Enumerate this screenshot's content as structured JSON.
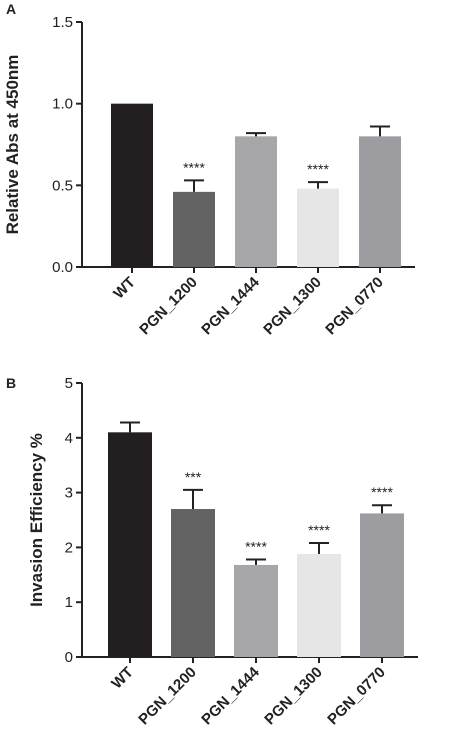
{
  "chart_data": [
    {
      "panel": "A",
      "type": "bar",
      "ylabel": "Relative Abs at 450nm",
      "ylim": [
        0,
        1.5
      ],
      "yticks": [
        "0.0",
        "0.5",
        "1.0",
        "1.5"
      ],
      "categories": [
        "WT",
        "PGN_1200",
        "PGN_1444",
        "PGN_1300",
        "PGN_0770"
      ],
      "values": [
        1.0,
        0.46,
        0.8,
        0.48,
        0.8
      ],
      "errors": [
        0.0,
        0.07,
        0.02,
        0.04,
        0.06
      ],
      "significance": [
        "",
        "****",
        "",
        "****",
        ""
      ],
      "colors": [
        "#231f20",
        "#636363",
        "#a7a7a9",
        "#e6e6e6",
        "#9d9ca1"
      ]
    },
    {
      "panel": "B",
      "type": "bar",
      "ylabel": "Invasion Efficiency %",
      "ylim": [
        0,
        5
      ],
      "yticks": [
        "0",
        "1",
        "2",
        "3",
        "4",
        "5"
      ],
      "categories": [
        "WT",
        "PGN_1200",
        "PGN_1444",
        "PGN_1300",
        "PGN_0770"
      ],
      "values": [
        4.1,
        2.7,
        1.68,
        1.88,
        2.62
      ],
      "errors": [
        0.18,
        0.35,
        0.1,
        0.2,
        0.15
      ],
      "significance": [
        "",
        "***",
        "****",
        "****",
        "****"
      ],
      "colors": [
        "#231f20",
        "#636363",
        "#a7a7a9",
        "#e6e6e6",
        "#9d9ca1"
      ]
    }
  ]
}
